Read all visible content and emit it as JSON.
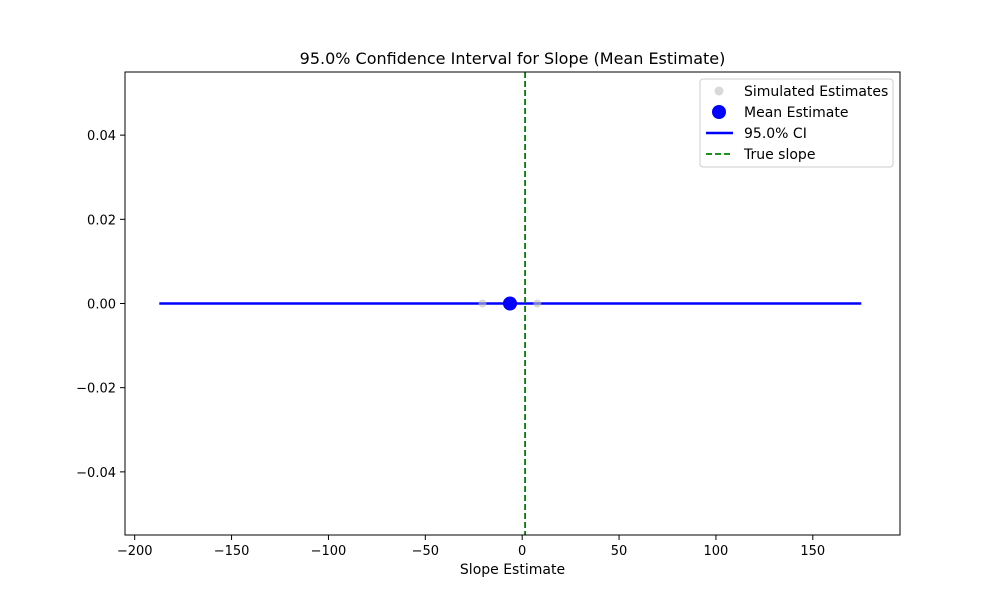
{
  "chart_data": {
    "type": "scatter",
    "title": "95.0% Confidence Interval for Slope (Mean Estimate)",
    "xlabel": "Slope Estimate",
    "ylabel": "",
    "xlim": [
      -205,
      195
    ],
    "ylim": [
      -0.055,
      0.055
    ],
    "x_ticks": [
      -200,
      -150,
      -100,
      -50,
      0,
      50,
      100,
      150
    ],
    "x_tick_labels": [
      "−200",
      "−150",
      "−100",
      "−50",
      "0",
      "50",
      "100",
      "150"
    ],
    "y_ticks": [
      0.04,
      0.02,
      0.0,
      -0.02,
      -0.04
    ],
    "y_tick_labels": [
      "0.04",
      "0.02",
      "0.00",
      "−0.02",
      "−0.04"
    ],
    "grid": false,
    "legend_position": "top-right",
    "series": [
      {
        "name": "Simulated Estimates",
        "kind": "scatter",
        "color": "#bfbfbf",
        "points": [
          {
            "x": -20.5,
            "y": 0.0
          },
          {
            "x": 7.8,
            "y": 0.0
          }
        ]
      },
      {
        "name": "Mean Estimate",
        "kind": "scatter",
        "color": "#0000ff",
        "points": [
          {
            "x": -6.3,
            "y": 0.0
          }
        ]
      },
      {
        "name": "95.0% CI",
        "kind": "line",
        "color": "#0000ff",
        "x": [
          -187.3,
          175.0
        ],
        "y": [
          0.0,
          0.0
        ]
      },
      {
        "name": "True slope",
        "kind": "vline",
        "color": "#008000",
        "style": "dashed",
        "x": 1.5
      }
    ]
  }
}
